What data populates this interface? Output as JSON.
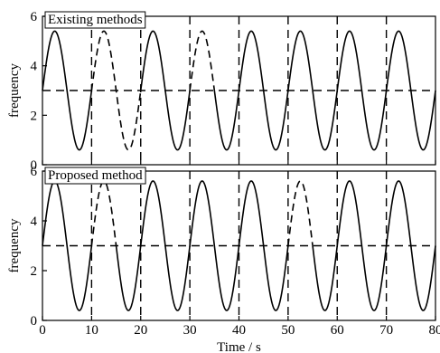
{
  "chart_data": [
    {
      "type": "line",
      "title": "Existing methods",
      "xlabel": "",
      "ylabel": "frequency",
      "xlim": [
        0,
        80
      ],
      "ylim": [
        0,
        6
      ],
      "xticks": [
        0,
        10,
        20,
        30,
        40,
        50,
        60,
        70,
        80
      ],
      "yticks": [
        0,
        2,
        4,
        6
      ],
      "signal": {
        "center": 3.0,
        "amplitude": 2.4,
        "period": 10,
        "phase": 0
      },
      "segments": [
        {
          "x": [
            0,
            10
          ],
          "style": "solid"
        },
        {
          "x": [
            10,
            20
          ],
          "style": "dashed"
        },
        {
          "x": [
            20,
            30
          ],
          "style": "solid"
        },
        {
          "x": [
            30,
            35
          ],
          "style": "dashed"
        },
        {
          "x": [
            35,
            80
          ],
          "style": "solid"
        }
      ],
      "reference_lines": {
        "horizontal": [
          3
        ],
        "vertical": [
          10,
          20,
          30,
          40,
          50,
          60,
          70
        ]
      }
    },
    {
      "type": "line",
      "title": "Proposed method",
      "xlabel": "Time / s",
      "ylabel": "frequency",
      "xlim": [
        0,
        80
      ],
      "ylim": [
        0,
        6
      ],
      "xticks": [
        0,
        10,
        20,
        30,
        40,
        50,
        60,
        70,
        80
      ],
      "yticks": [
        0,
        2,
        4,
        6
      ],
      "signal": {
        "center": 3.0,
        "amplitude": 2.6,
        "period": 10,
        "phase": 0
      },
      "segments": [
        {
          "x": [
            0,
            10
          ],
          "style": "solid"
        },
        {
          "x": [
            10,
            15
          ],
          "style": "dashed"
        },
        {
          "x": [
            15,
            50
          ],
          "style": "solid"
        },
        {
          "x": [
            50,
            55
          ],
          "style": "dashed"
        },
        {
          "x": [
            55,
            80
          ],
          "style": "solid"
        }
      ],
      "reference_lines": {
        "horizontal": [
          3
        ],
        "vertical": [
          10,
          20,
          30,
          40,
          50,
          60,
          70
        ]
      }
    }
  ]
}
